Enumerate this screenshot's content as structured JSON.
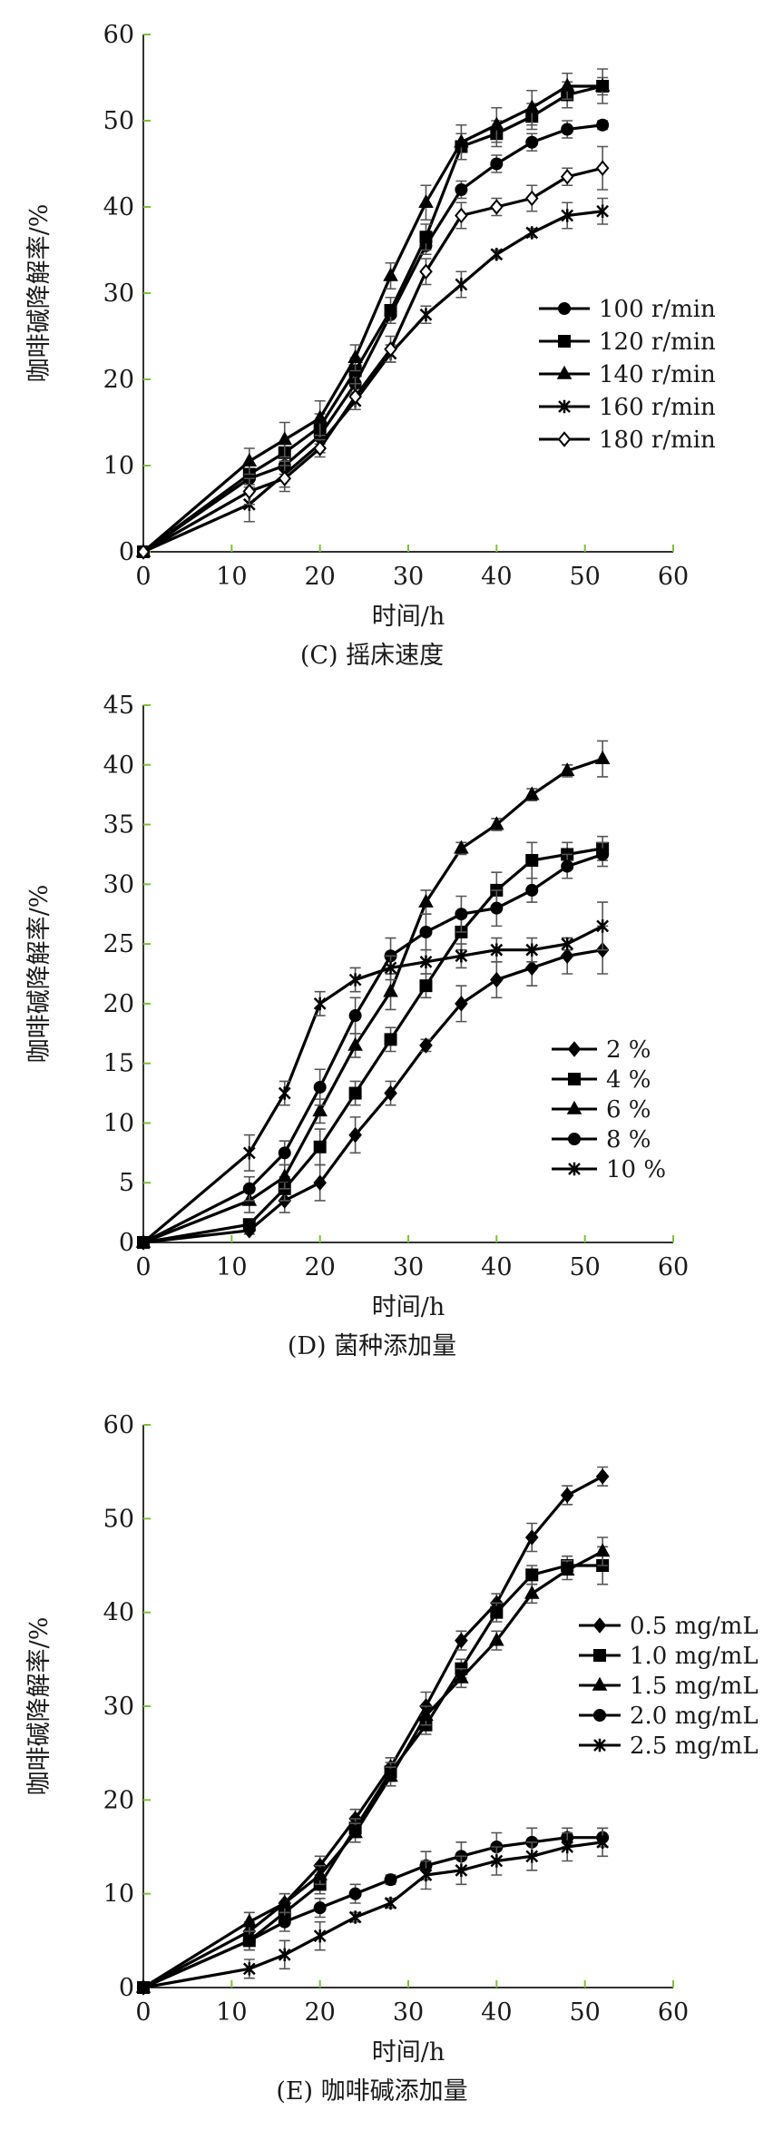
{
  "chart_data": [
    {
      "type": "line",
      "caption": "(C) 摇床速度",
      "xlabel": "时间/h",
      "ylabel": "咖啡碱降解率/%",
      "xlim": [
        0,
        60
      ],
      "ylim": [
        0,
        60
      ],
      "xticks": [
        0,
        10,
        20,
        30,
        40,
        50,
        60
      ],
      "yticks": [
        0,
        10,
        20,
        30,
        40,
        50,
        60
      ],
      "legend_position": "right",
      "x": [
        0,
        12,
        16,
        20,
        24,
        28,
        32,
        36,
        40,
        44,
        48,
        52
      ],
      "series": [
        {
          "name": "100 r/min",
          "marker": "circle",
          "values": [
            0,
            8.5,
            10,
            13.5,
            19.5,
            27.5,
            35.5,
            42,
            45,
            47.5,
            49,
            49.5
          ],
          "err": [
            0,
            1,
            1,
            1,
            1.2,
            1,
            1,
            1,
            1,
            1,
            1,
            0.5
          ]
        },
        {
          "name": "120 r/min",
          "marker": "square",
          "values": [
            0,
            9,
            11.5,
            14.5,
            21,
            28,
            36.5,
            47,
            48.5,
            50.5,
            53,
            54
          ],
          "err": [
            0,
            1.2,
            1,
            1.5,
            1.5,
            1.5,
            1.5,
            1.5,
            1.5,
            1.5,
            1.5,
            1
          ]
        },
        {
          "name": "140 r/min",
          "marker": "triangle",
          "values": [
            0,
            10.5,
            13,
            15.5,
            22.5,
            32,
            40.5,
            47.5,
            49.5,
            51.5,
            54,
            54
          ],
          "err": [
            0,
            1.5,
            2,
            2,
            1.5,
            1.5,
            2,
            2,
            2,
            2,
            1.5,
            2
          ]
        },
        {
          "name": "160 r/min",
          "marker": "x",
          "values": [
            0,
            5.5,
            9,
            12.5,
            17.5,
            23,
            27.5,
            31,
            34.5,
            37,
            39,
            39.5
          ],
          "err": [
            0,
            2,
            1.5,
            1,
            1,
            1,
            1,
            1.5,
            0.5,
            0.5,
            1.5,
            1.5
          ]
        },
        {
          "name": "180 r/min",
          "marker": "diamond-open",
          "values": [
            0,
            7,
            8.5,
            12,
            18,
            23.5,
            32.5,
            39,
            40,
            41,
            43.5,
            44.5
          ],
          "err": [
            0,
            1.5,
            1.5,
            1,
            1.5,
            1.5,
            1.5,
            1.5,
            1,
            1.5,
            1,
            2.5
          ]
        }
      ]
    },
    {
      "type": "line",
      "caption": "(D) 菌种添加量",
      "xlabel": "时间/h",
      "ylabel": "咖啡碱降解率/%",
      "xlim": [
        0,
        60
      ],
      "ylim": [
        0,
        45
      ],
      "xticks": [
        0,
        10,
        20,
        30,
        40,
        50,
        60
      ],
      "yticks": [
        0,
        5,
        10,
        15,
        20,
        25,
        30,
        35,
        40,
        45
      ],
      "legend_position": "right",
      "x": [
        0,
        12,
        16,
        20,
        24,
        28,
        32,
        36,
        40,
        44,
        48,
        52
      ],
      "series": [
        {
          "name": "2 %",
          "marker": "diamond",
          "values": [
            0,
            1,
            3.5,
            5,
            9,
            12.5,
            16.5,
            20,
            22,
            23,
            24,
            24.5
          ],
          "err": [
            0,
            0.3,
            1,
            1.5,
            1.5,
            1,
            0.5,
            1.5,
            1.5,
            1.5,
            1.5,
            2
          ]
        },
        {
          "name": "4 %",
          "marker": "square",
          "values": [
            0,
            1.5,
            4.5,
            8,
            12.5,
            17,
            21.5,
            26,
            29.5,
            32,
            32.5,
            33
          ],
          "err": [
            0,
            0.3,
            1,
            1.5,
            1,
            1,
            1,
            1.5,
            1.5,
            1.5,
            1,
            1
          ]
        },
        {
          "name": "6 %",
          "marker": "triangle",
          "values": [
            0,
            3.5,
            5.5,
            11,
            16.5,
            21,
            28.5,
            33,
            35,
            37.5,
            39.5,
            40.5
          ],
          "err": [
            0,
            1,
            1,
            1,
            1,
            1.5,
            1,
            0.5,
            0.5,
            0.5,
            0.5,
            1.5
          ]
        },
        {
          "name": "8 %",
          "marker": "circle",
          "values": [
            0,
            4.5,
            7.5,
            13,
            19,
            24,
            26,
            27.5,
            28,
            29.5,
            31.5,
            32.5
          ],
          "err": [
            0,
            1,
            1,
            1.5,
            1.5,
            1.5,
            1.5,
            1.5,
            1.5,
            1,
            1,
            1
          ]
        },
        {
          "name": "10 %",
          "marker": "x",
          "values": [
            0,
            7.5,
            12.5,
            20,
            22,
            23,
            23.5,
            24,
            24.5,
            24.5,
            25,
            26.5
          ],
          "err": [
            0,
            1.5,
            1,
            1,
            1,
            1,
            1,
            1,
            1,
            1,
            0.5,
            2
          ]
        }
      ]
    },
    {
      "type": "line",
      "caption": "(E) 咖啡碱添加量",
      "xlabel": "时间/h",
      "ylabel": "咖啡碱降解率/%",
      "xlim": [
        0,
        60
      ],
      "ylim": [
        0,
        60
      ],
      "xticks": [
        0,
        10,
        20,
        30,
        40,
        50,
        60
      ],
      "yticks": [
        0,
        10,
        20,
        30,
        40,
        50,
        60
      ],
      "legend_position": "right",
      "x": [
        0,
        12,
        16,
        20,
        24,
        28,
        32,
        36,
        40,
        44,
        48,
        52
      ],
      "series": [
        {
          "name": "0.5 mg/mL",
          "marker": "diamond",
          "values": [
            0,
            6,
            9,
            13,
            18,
            23.5,
            30,
            37,
            41,
            48,
            52.5,
            54.5
          ],
          "err": [
            0,
            1,
            1,
            1,
            1,
            1,
            1.5,
            1,
            1,
            1.5,
            1,
            1
          ]
        },
        {
          "name": "1.0 mg/mL",
          "marker": "square",
          "values": [
            0,
            5,
            8,
            11,
            17,
            23,
            28,
            34,
            40,
            44,
            45,
            45
          ],
          "err": [
            0,
            1,
            1,
            1,
            1,
            1,
            1,
            1,
            1,
            1,
            1,
            2
          ]
        },
        {
          "name": "1.5 mg/mL",
          "marker": "triangle",
          "values": [
            0,
            7,
            9,
            12,
            16.5,
            22.5,
            29,
            33,
            37,
            42,
            44.5,
            46.5
          ],
          "err": [
            0,
            1,
            1,
            1,
            1,
            1,
            1,
            1,
            1,
            1,
            1,
            1.5
          ]
        },
        {
          "name": "2.0 mg/mL",
          "marker": "circle",
          "values": [
            0,
            5,
            7,
            8.5,
            10,
            11.5,
            13,
            14,
            15,
            15.5,
            16,
            16
          ],
          "err": [
            0,
            1,
            1,
            1,
            1,
            0.5,
            1.5,
            1.5,
            1.5,
            1.5,
            1,
            1
          ]
        },
        {
          "name": "2.5 mg/mL",
          "marker": "x",
          "values": [
            0,
            2,
            3.5,
            5.5,
            7.5,
            9,
            12,
            12.5,
            13.5,
            14,
            15,
            15.5
          ],
          "err": [
            0,
            1,
            1.5,
            1.5,
            0.5,
            0.5,
            1.5,
            1.5,
            1.5,
            1.5,
            1.5,
            1.5
          ]
        }
      ]
    }
  ]
}
